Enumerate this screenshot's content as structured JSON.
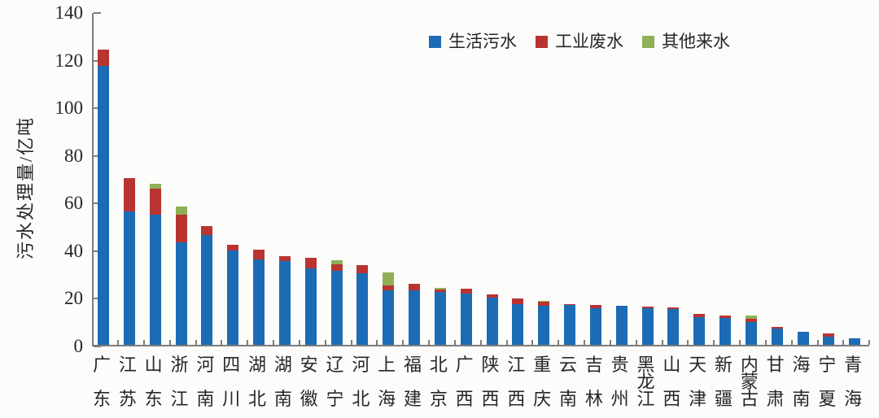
{
  "chart_data": {
    "type": "bar",
    "stacked": true,
    "orientation": "vertical",
    "title": "",
    "xlabel": "",
    "ylabel": "污水处理量/亿吨",
    "ylim": [
      0,
      140
    ],
    "yticks": [
      0,
      20,
      40,
      60,
      80,
      100,
      120,
      140
    ],
    "grid": false,
    "legend_position": "top-center",
    "categories": [
      "广东",
      "江苏",
      "山东",
      "浙江",
      "河南",
      "四川",
      "湖北",
      "湖南",
      "安徽",
      "辽宁",
      "河北",
      "上海",
      "福建",
      "北京",
      "广西",
      "陕西",
      "江西",
      "重庆",
      "云南",
      "吉林",
      "贵州",
      "黑龙江",
      "山西",
      "天津",
      "新疆",
      "内蒙古",
      "甘肃",
      "海南",
      "宁夏",
      "青海"
    ],
    "series": [
      {
        "name": "生活污水",
        "color": "#1b6cb5",
        "values": [
          117,
          56,
          54.5,
          43,
          46,
          39.5,
          36,
          35.3,
          32,
          31,
          30,
          23,
          23,
          22.3,
          21.6,
          19.7,
          17,
          16.5,
          16.7,
          15.5,
          16.4,
          15.4,
          15,
          11.7,
          11.2,
          9.5,
          7,
          5.5,
          3.5,
          2.8
        ]
      },
      {
        "name": "工业废水",
        "color": "#b93331",
        "values": [
          7,
          14,
          11,
          11.5,
          4,
          2.5,
          4,
          2,
          4.5,
          2.8,
          3.4,
          2.1,
          2.5,
          0.9,
          2.1,
          1.5,
          2.6,
          1.6,
          0.3,
          1.1,
          0,
          0.7,
          0.8,
          1.2,
          1.1,
          1.6,
          0.5,
          0,
          1.2,
          0
        ]
      },
      {
        "name": "其他来水",
        "color": "#8fb054",
        "values": [
          0,
          0,
          2,
          3.7,
          0,
          0,
          0,
          0,
          0,
          1.6,
          0,
          5.4,
          0,
          0.7,
          0,
          0,
          0,
          0.3,
          0,
          0,
          0,
          0,
          0,
          0,
          0,
          1.2,
          0,
          0,
          0,
          0
        ]
      }
    ]
  },
  "axes": {
    "y_title": "污水处理量/亿吨",
    "y_tick_labels": [
      "0",
      "20",
      "40",
      "60",
      "80",
      "100",
      "120",
      "140"
    ]
  }
}
